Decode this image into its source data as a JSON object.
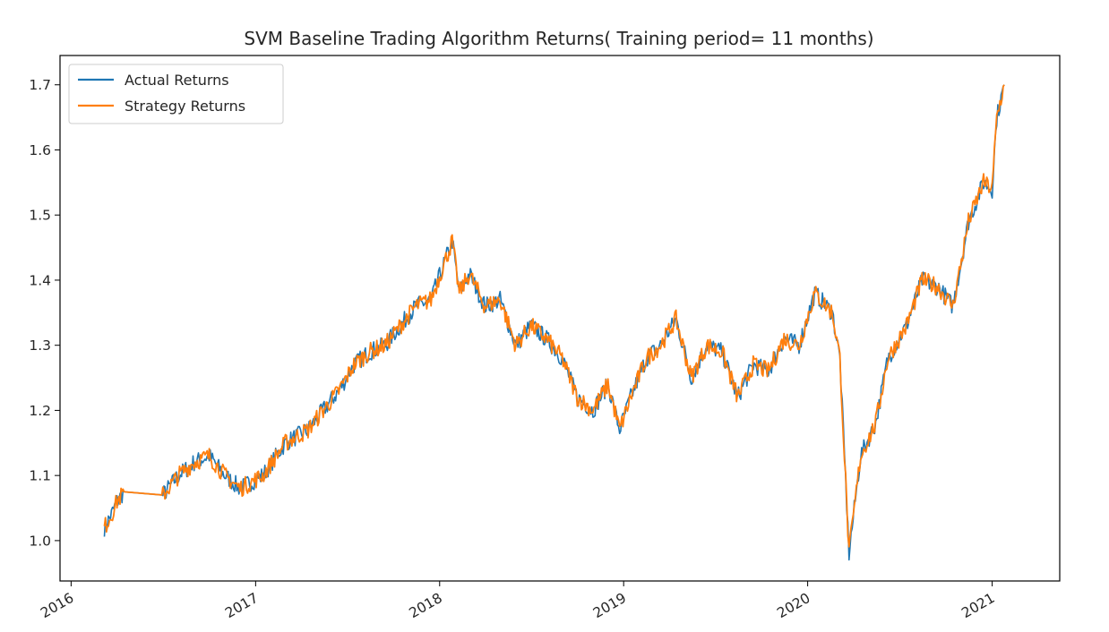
{
  "chart_data": {
    "type": "line",
    "title": "SVM Baseline Trading Algorithm Returns( Training period= 11 months)",
    "xlabel": "",
    "ylabel": "",
    "xlim": [
      "2015-12-10",
      "2021-05-15"
    ],
    "ylim": [
      0.938,
      1.745
    ],
    "x_ticks": [
      "2016",
      "2017",
      "2018",
      "2019",
      "2020",
      "2021"
    ],
    "y_ticks": [
      "1.0",
      "1.1",
      "1.2",
      "1.3",
      "1.4",
      "1.5",
      "1.6",
      "1.7"
    ],
    "legend": {
      "position": "top-left"
    },
    "grid": false,
    "series": [
      {
        "name": "Actual Returns",
        "color": "#1f77b4",
        "x": [
          "2016-03-07",
          "2016-03-21",
          "2016-04-01",
          "2016-04-15",
          "2016-07-01",
          "2016-08-01",
          "2016-09-01",
          "2016-10-01",
          "2016-11-01",
          "2016-12-01",
          "2017-01-15",
          "2017-03-01",
          "2017-04-15",
          "2017-05-15",
          "2017-06-15",
          "2017-07-15",
          "2017-08-15",
          "2017-09-15",
          "2017-10-15",
          "2017-11-15",
          "2017-12-15",
          "2018-01-26",
          "2018-02-09",
          "2018-03-01",
          "2018-04-01",
          "2018-05-01",
          "2018-06-01",
          "2018-07-01",
          "2018-08-01",
          "2018-09-01",
          "2018-10-01",
          "2018-11-01",
          "2018-12-01",
          "2018-12-24",
          "2019-01-15",
          "2019-02-15",
          "2019-03-15",
          "2019-04-15",
          "2019-05-15",
          "2019-06-15",
          "2019-07-15",
          "2019-08-15",
          "2019-09-15",
          "2019-10-15",
          "2019-11-15",
          "2019-12-15",
          "2020-01-15",
          "2020-02-19",
          "2020-03-05",
          "2020-03-23",
          "2020-04-15",
          "2020-05-15",
          "2020-06-08",
          "2020-07-15",
          "2020-08-15",
          "2020-09-15",
          "2020-10-15",
          "2020-11-01",
          "2020-11-15",
          "2020-12-15",
          "2021-01-01",
          "2021-01-10",
          "2021-01-25"
        ],
        "y": [
          1.02,
          1.04,
          1.06,
          1.075,
          1.07,
          1.1,
          1.12,
          1.13,
          1.1,
          1.08,
          1.1,
          1.15,
          1.17,
          1.2,
          1.23,
          1.27,
          1.29,
          1.3,
          1.33,
          1.36,
          1.37,
          1.46,
          1.38,
          1.41,
          1.36,
          1.37,
          1.3,
          1.33,
          1.31,
          1.28,
          1.22,
          1.2,
          1.24,
          1.17,
          1.22,
          1.28,
          1.3,
          1.34,
          1.25,
          1.3,
          1.29,
          1.22,
          1.27,
          1.26,
          1.31,
          1.3,
          1.38,
          1.35,
          1.28,
          0.98,
          1.13,
          1.18,
          1.28,
          1.33,
          1.4,
          1.39,
          1.36,
          1.43,
          1.49,
          1.55,
          1.54,
          1.65,
          1.7
        ]
      },
      {
        "name": "Strategy Returns",
        "color": "#ff7f0e",
        "x": [
          "2016-03-07",
          "2016-03-21",
          "2016-04-01",
          "2016-04-15",
          "2016-07-01",
          "2016-08-01",
          "2016-09-01",
          "2016-10-01",
          "2016-11-01",
          "2016-12-01",
          "2017-01-15",
          "2017-03-01",
          "2017-04-15",
          "2017-05-15",
          "2017-06-15",
          "2017-07-15",
          "2017-08-15",
          "2017-09-15",
          "2017-10-15",
          "2017-11-15",
          "2017-12-15",
          "2018-01-26",
          "2018-02-09",
          "2018-03-01",
          "2018-04-01",
          "2018-05-01",
          "2018-06-01",
          "2018-07-01",
          "2018-08-01",
          "2018-09-01",
          "2018-10-01",
          "2018-11-01",
          "2018-12-01",
          "2018-12-24",
          "2019-01-15",
          "2019-02-15",
          "2019-03-15",
          "2019-04-15",
          "2019-05-15",
          "2019-06-15",
          "2019-07-15",
          "2019-08-15",
          "2019-09-15",
          "2019-10-15",
          "2019-11-15",
          "2019-12-15",
          "2020-01-15",
          "2020-02-19",
          "2020-03-05",
          "2020-03-23",
          "2020-04-15",
          "2020-05-15",
          "2020-06-08",
          "2020-07-15",
          "2020-08-15",
          "2020-09-15",
          "2020-10-15",
          "2020-11-01",
          "2020-11-15",
          "2020-12-15",
          "2021-01-01",
          "2021-01-10",
          "2021-01-25"
        ],
        "y": [
          1.02,
          1.04,
          1.06,
          1.075,
          1.07,
          1.1,
          1.12,
          1.13,
          1.1,
          1.08,
          1.1,
          1.15,
          1.17,
          1.2,
          1.23,
          1.27,
          1.29,
          1.3,
          1.33,
          1.36,
          1.37,
          1.46,
          1.38,
          1.41,
          1.36,
          1.37,
          1.3,
          1.33,
          1.31,
          1.28,
          1.22,
          1.2,
          1.24,
          1.17,
          1.22,
          1.28,
          1.3,
          1.34,
          1.25,
          1.3,
          1.29,
          1.22,
          1.27,
          1.26,
          1.31,
          1.3,
          1.38,
          1.35,
          1.28,
          0.98,
          1.13,
          1.18,
          1.28,
          1.33,
          1.4,
          1.39,
          1.36,
          1.43,
          1.49,
          1.55,
          1.54,
          1.65,
          1.7
        ]
      }
    ]
  }
}
